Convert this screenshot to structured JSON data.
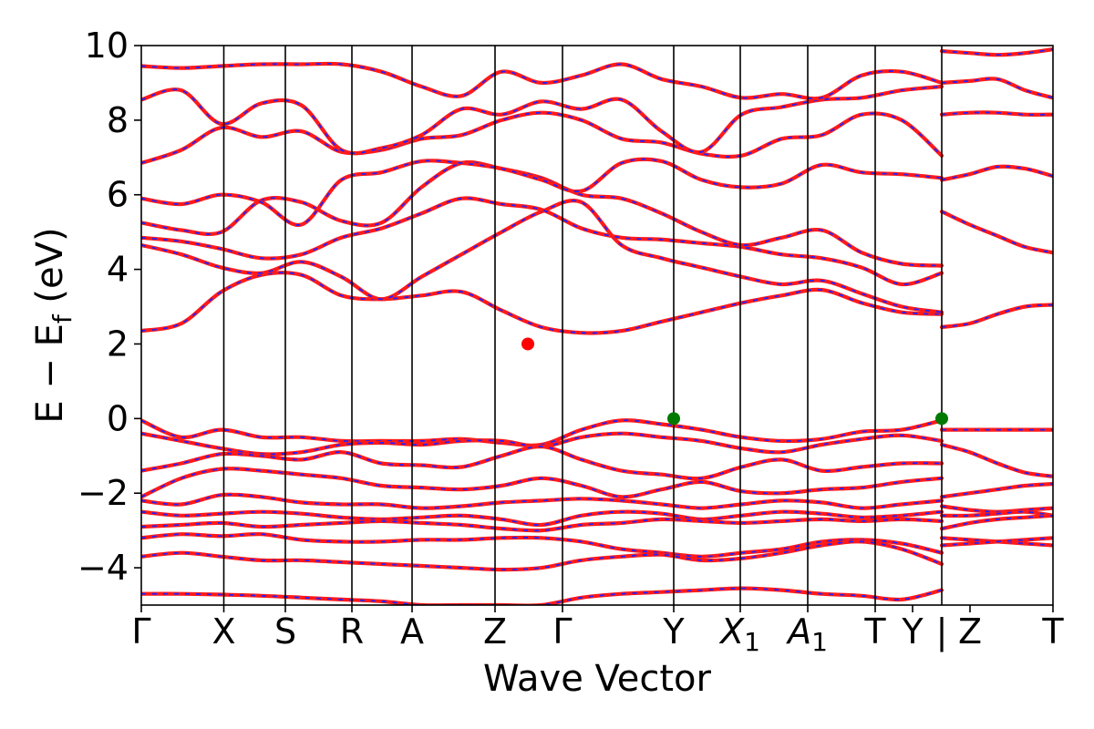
{
  "chart_data": {
    "type": "line",
    "title": "",
    "xlabel": "Wave Vector",
    "ylabel": "E − E_f (eV)",
    "ylabel_main": "E − E",
    "ylabel_sub": "f",
    "ylabel_unit": " (eV)",
    "ylim": [
      -5,
      10
    ],
    "yticks": [
      10,
      8,
      6,
      4,
      2,
      0,
      -2,
      -4
    ],
    "ytick_labels": [
      "10",
      "8",
      "6",
      "4",
      "2",
      "0",
      "−2",
      "−4"
    ],
    "grid": false,
    "legend": "none",
    "x_range": [
      0,
      1
    ],
    "kpoints": [
      {
        "label": "Γ",
        "pos": 0.0
      },
      {
        "label": "X",
        "pos": 0.0905
      },
      {
        "label": "S",
        "pos": 0.158
      },
      {
        "label": "R",
        "pos": 0.231
      },
      {
        "label": "A",
        "pos": 0.297
      },
      {
        "label": "Z",
        "pos": 0.388
      },
      {
        "label": "Γ",
        "pos": 0.462
      },
      {
        "label": "Y",
        "pos": 0.584
      },
      {
        "label": "X",
        "sub": "1",
        "pos": 0.657
      },
      {
        "label": "A",
        "sub": "1",
        "pos": 0.731
      },
      {
        "label": "T",
        "pos": 0.805
      },
      {
        "label": "Y",
        "pos": 0.846
      },
      {
        "label": "|",
        "pos": 0.878
      },
      {
        "label": "Z",
        "pos": 0.909
      },
      {
        "label": "T",
        "pos": 1.0
      }
    ],
    "vertical_lines": [
      0.0905,
      0.158,
      0.231,
      0.297,
      0.388,
      0.462,
      0.584,
      0.657,
      0.731,
      0.805,
      0.878
    ],
    "band_colors": {
      "primary": "#ff1a1a",
      "overlay": "#2222ff"
    },
    "marker_colors": {
      "cbm": "#ff0000",
      "vbm": "#007a00"
    },
    "bands": [
      [
        2.35,
        2.55,
        3.4,
        3.85,
        3.85,
        3.3,
        3.2,
        3.3,
        3.4,
        2.9,
        2.45,
        2.3,
        2.35,
        2.6,
        2.85,
        3.1,
        3.3,
        3.45,
        3.1,
        2.85,
        2.8
      ],
      [
        4.65,
        4.4,
        4.05,
        3.9,
        4.2,
        3.8,
        3.2,
        3.8,
        4.4,
        5.0,
        5.55,
        5.8,
        4.65,
        4.3,
        4.05,
        3.8,
        3.6,
        3.7,
        3.35,
        3.0,
        2.85
      ],
      [
        4.85,
        4.75,
        4.55,
        4.3,
        4.4,
        4.85,
        5.1,
        5.5,
        5.9,
        5.75,
        5.6,
        5.1,
        4.85,
        4.8,
        4.7,
        4.6,
        4.4,
        4.3,
        4.05,
        3.6,
        3.9
      ],
      [
        5.25,
        5.05,
        5.0,
        5.85,
        5.8,
        5.3,
        5.25,
        6.2,
        6.85,
        6.7,
        6.45,
        6.0,
        5.9,
        5.5,
        5.0,
        4.65,
        4.85,
        5.05,
        4.45,
        4.15,
        4.1
      ],
      [
        5.9,
        5.75,
        6.0,
        5.8,
        5.2,
        6.4,
        6.6,
        6.9,
        6.85,
        6.7,
        6.4,
        6.1,
        6.85,
        6.9,
        6.4,
        6.2,
        6.3,
        6.8,
        6.6,
        6.55,
        6.45
      ],
      [
        6.85,
        7.2,
        7.8,
        7.55,
        7.7,
        7.15,
        7.2,
        7.5,
        7.6,
        8.0,
        8.2,
        8.0,
        7.5,
        7.4,
        7.1,
        7.05,
        7.5,
        7.6,
        8.15,
        8.0,
        7.05
      ],
      [
        8.55,
        8.8,
        7.9,
        8.45,
        8.4,
        7.2,
        7.25,
        7.6,
        8.3,
        8.15,
        8.5,
        8.3,
        8.55,
        7.7,
        7.15,
        8.15,
        8.35,
        8.55,
        8.6,
        8.8,
        8.9
      ],
      [
        9.45,
        9.4,
        9.45,
        9.5,
        9.5,
        9.5,
        9.3,
        8.9,
        8.65,
        9.3,
        9.0,
        9.2,
        9.5,
        9.1,
        8.9,
        8.6,
        8.7,
        8.6,
        9.2,
        9.3,
        9.0
      ],
      [
        -0.05,
        -0.5,
        -0.3,
        -0.5,
        -0.5,
        -0.6,
        -0.6,
        -0.6,
        -0.55,
        -0.65,
        -0.7,
        -0.3,
        -0.05,
        -0.15,
        -0.3,
        -0.5,
        -0.6,
        -0.55,
        -0.35,
        -0.3,
        -0.05
      ],
      [
        -0.4,
        -0.6,
        -0.8,
        -0.95,
        -0.9,
        -0.7,
        -0.65,
        -0.7,
        -0.6,
        -0.6,
        -0.75,
        -0.5,
        -0.4,
        -0.5,
        -0.6,
        -0.8,
        -0.9,
        -0.7,
        -0.55,
        -0.45,
        -0.6
      ],
      [
        -1.4,
        -1.2,
        -0.95,
        -1.0,
        -1.1,
        -0.9,
        -1.2,
        -1.25,
        -1.3,
        -1.0,
        -0.75,
        -1.1,
        -1.4,
        -1.5,
        -1.6,
        -1.3,
        -1.1,
        -1.4,
        -1.3,
        -1.2,
        -1.2
      ],
      [
        -2.1,
        -1.6,
        -1.35,
        -1.4,
        -1.5,
        -1.6,
        -1.8,
        -1.85,
        -1.9,
        -1.8,
        -1.6,
        -1.8,
        -2.1,
        -1.9,
        -1.7,
        -1.95,
        -2.0,
        -1.9,
        -1.85,
        -1.7,
        -1.6
      ],
      [
        -2.2,
        -2.3,
        -2.05,
        -2.1,
        -2.25,
        -2.3,
        -2.3,
        -2.4,
        -2.35,
        -2.25,
        -2.2,
        -2.15,
        -2.2,
        -2.3,
        -2.4,
        -2.3,
        -2.2,
        -2.25,
        -2.4,
        -2.3,
        -2.2
      ],
      [
        -2.5,
        -2.6,
        -2.55,
        -2.5,
        -2.55,
        -2.65,
        -2.7,
        -2.65,
        -2.6,
        -2.7,
        -2.85,
        -2.6,
        -2.5,
        -2.55,
        -2.7,
        -2.6,
        -2.5,
        -2.55,
        -2.65,
        -2.6,
        -2.5
      ],
      [
        -2.9,
        -2.85,
        -2.8,
        -2.9,
        -2.85,
        -2.8,
        -2.75,
        -2.8,
        -2.85,
        -2.95,
        -3.0,
        -2.85,
        -2.8,
        -2.7,
        -2.75,
        -2.8,
        -2.75,
        -2.7,
        -2.75,
        -2.7,
        -2.75
      ],
      [
        -3.2,
        -3.1,
        -3.15,
        -3.1,
        -3.25,
        -3.3,
        -3.3,
        -3.25,
        -3.25,
        -3.2,
        -3.2,
        -3.3,
        -3.5,
        -3.6,
        -3.7,
        -3.6,
        -3.5,
        -3.3,
        -3.25,
        -3.35,
        -3.6
      ],
      [
        -3.7,
        -3.6,
        -3.7,
        -3.8,
        -3.8,
        -3.85,
        -3.9,
        -3.95,
        -4.0,
        -4.05,
        -4.0,
        -3.8,
        -3.7,
        -3.65,
        -3.8,
        -3.75,
        -3.6,
        -3.4,
        -3.3,
        -3.5,
        -3.9
      ],
      [
        -4.7,
        -4.7,
        -4.72,
        -4.75,
        -4.8,
        -4.85,
        -4.9,
        -5.0,
        -5.0,
        -5.0,
        -5.0,
        -4.8,
        -4.7,
        -4.65,
        -4.6,
        -4.55,
        -4.6,
        -4.7,
        -4.75,
        -4.85,
        -4.6
      ]
    ],
    "bands_right": [
      [
        2.45,
        2.55,
        2.8,
        3.0,
        3.05
      ],
      [
        5.55,
        5.2,
        4.9,
        4.6,
        4.45
      ],
      [
        6.4,
        6.55,
        6.75,
        6.7,
        6.5
      ],
      [
        8.15,
        8.2,
        8.2,
        8.15,
        8.15
      ],
      [
        9.0,
        9.05,
        9.1,
        8.8,
        8.6
      ],
      [
        9.85,
        9.8,
        9.75,
        9.8,
        9.9
      ],
      [
        -0.3,
        -0.3,
        -0.3,
        -0.3,
        -0.3
      ],
      [
        -0.7,
        -0.9,
        -1.2,
        -1.45,
        -1.55
      ],
      [
        -2.1,
        -2.0,
        -1.9,
        -1.8,
        -1.75
      ],
      [
        -2.35,
        -2.45,
        -2.5,
        -2.45,
        -2.4
      ],
      [
        -2.6,
        -2.6,
        -2.55,
        -2.5,
        -2.6
      ],
      [
        -2.95,
        -2.8,
        -2.7,
        -2.65,
        -2.6
      ],
      [
        -3.2,
        -3.25,
        -3.3,
        -3.35,
        -3.4
      ],
      [
        -3.4,
        -3.35,
        -3.3,
        -3.25,
        -3.2
      ]
    ],
    "markers": [
      {
        "name": "cbm",
        "x": 0.424,
        "y": 2.0
      },
      {
        "name": "vbm",
        "x": 0.584,
        "y": 0.0
      },
      {
        "name": "vbm",
        "x": 0.878,
        "y": 0.0
      }
    ]
  }
}
